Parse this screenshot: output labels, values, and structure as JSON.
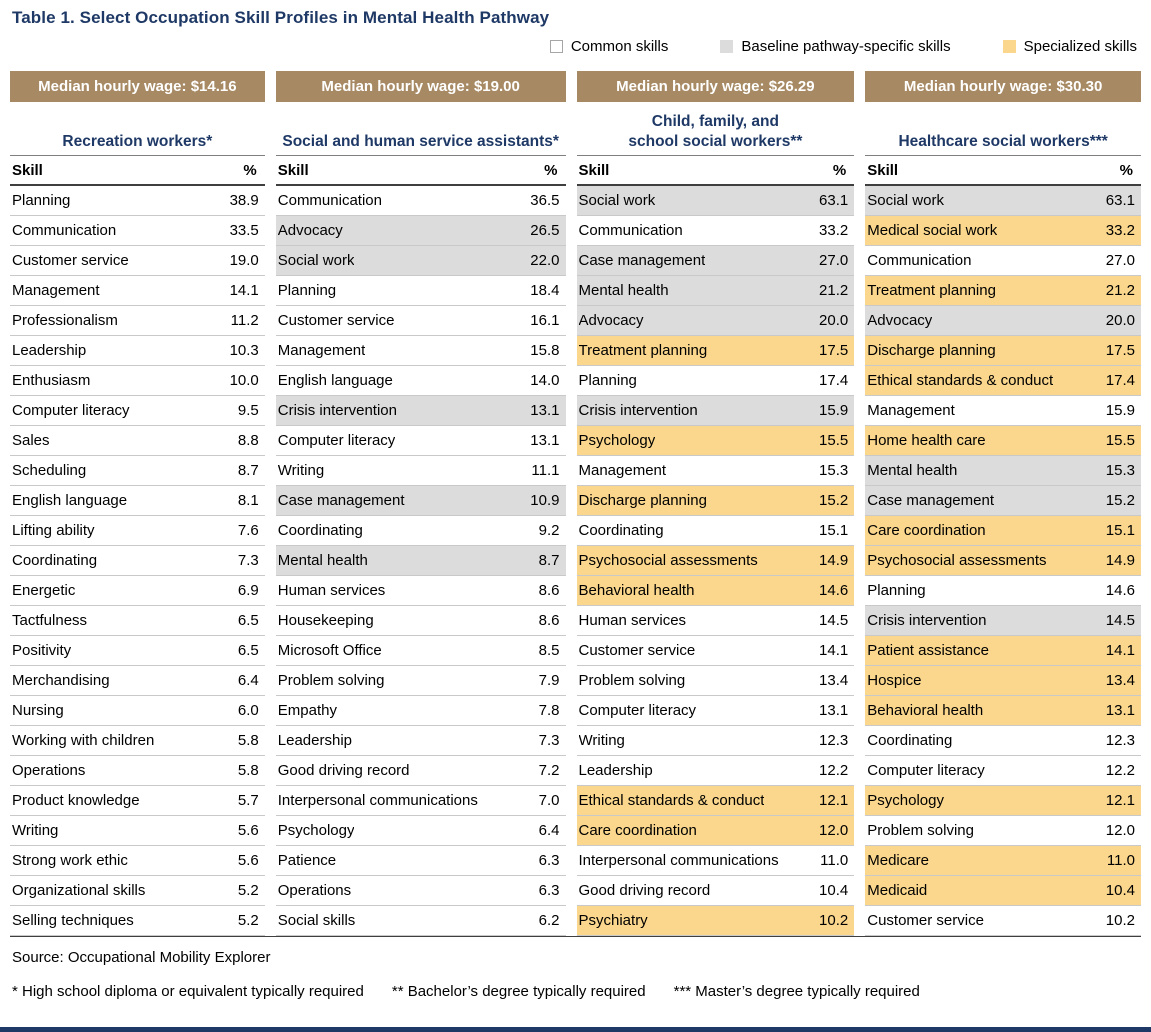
{
  "title": "Table 1. Select Occupation Skill Profiles in Mental Health Pathway",
  "colors": {
    "accent_navy": "#1f3966",
    "banner_tan": "#a78a64",
    "baseline_gray": "#dcdcdc",
    "specialized_amber": "#fad78c"
  },
  "legend": {
    "items": [
      {
        "key": "common",
        "label": "Common skills",
        "color": "#ffffff",
        "border": "#a6a6a6"
      },
      {
        "key": "baseline",
        "label": "Baseline pathway-specific skills",
        "color": "#dcdcdc",
        "border": "#dcdcdc"
      },
      {
        "key": "specialized",
        "label": "Specialized skills",
        "color": "#fad78c",
        "border": "#fad78c"
      }
    ]
  },
  "columns": [
    {
      "wage_label": "Median hourly wage: $14.16",
      "occupation": "Recreation workers*",
      "skill_header": "Skill",
      "pct_header": "%",
      "rows": [
        {
          "skill": "Planning",
          "pct": "38.9",
          "type": "common"
        },
        {
          "skill": "Communication",
          "pct": "33.5",
          "type": "common"
        },
        {
          "skill": "Customer service",
          "pct": "19.0",
          "type": "common"
        },
        {
          "skill": "Management",
          "pct": "14.1",
          "type": "common"
        },
        {
          "skill": "Professionalism",
          "pct": "11.2",
          "type": "common"
        },
        {
          "skill": "Leadership",
          "pct": "10.3",
          "type": "common"
        },
        {
          "skill": "Enthusiasm",
          "pct": "10.0",
          "type": "common"
        },
        {
          "skill": "Computer literacy",
          "pct": "9.5",
          "type": "common"
        },
        {
          "skill": "Sales",
          "pct": "8.8",
          "type": "common"
        },
        {
          "skill": "Scheduling",
          "pct": "8.7",
          "type": "common"
        },
        {
          "skill": "English language",
          "pct": "8.1",
          "type": "common"
        },
        {
          "skill": "Lifting ability",
          "pct": "7.6",
          "type": "common"
        },
        {
          "skill": "Coordinating",
          "pct": "7.3",
          "type": "common"
        },
        {
          "skill": "Energetic",
          "pct": "6.9",
          "type": "common"
        },
        {
          "skill": "Tactfulness",
          "pct": "6.5",
          "type": "common"
        },
        {
          "skill": "Positivity",
          "pct": "6.5",
          "type": "common"
        },
        {
          "skill": "Merchandising",
          "pct": "6.4",
          "type": "common"
        },
        {
          "skill": "Nursing",
          "pct": "6.0",
          "type": "common"
        },
        {
          "skill": "Working with children",
          "pct": "5.8",
          "type": "common"
        },
        {
          "skill": "Operations",
          "pct": "5.8",
          "type": "common"
        },
        {
          "skill": "Product knowledge",
          "pct": "5.7",
          "type": "common"
        },
        {
          "skill": "Writing",
          "pct": "5.6",
          "type": "common"
        },
        {
          "skill": "Strong work ethic",
          "pct": "5.6",
          "type": "common"
        },
        {
          "skill": "Organizational skills",
          "pct": "5.2",
          "type": "common"
        },
        {
          "skill": "Selling techniques",
          "pct": "5.2",
          "type": "common"
        }
      ]
    },
    {
      "wage_label": "Median hourly wage: $19.00",
      "occupation": "Social and human service assistants*",
      "skill_header": "Skill",
      "pct_header": "%",
      "rows": [
        {
          "skill": "Communication",
          "pct": "36.5",
          "type": "common"
        },
        {
          "skill": "Advocacy",
          "pct": "26.5",
          "type": "baseline"
        },
        {
          "skill": "Social work",
          "pct": "22.0",
          "type": "baseline"
        },
        {
          "skill": "Planning",
          "pct": "18.4",
          "type": "common"
        },
        {
          "skill": "Customer service",
          "pct": "16.1",
          "type": "common"
        },
        {
          "skill": "Management",
          "pct": "15.8",
          "type": "common"
        },
        {
          "skill": "English language",
          "pct": "14.0",
          "type": "common"
        },
        {
          "skill": "Crisis intervention",
          "pct": "13.1",
          "type": "baseline"
        },
        {
          "skill": "Computer literacy",
          "pct": "13.1",
          "type": "common"
        },
        {
          "skill": "Writing",
          "pct": "11.1",
          "type": "common"
        },
        {
          "skill": "Case management",
          "pct": "10.9",
          "type": "baseline"
        },
        {
          "skill": "Coordinating",
          "pct": "9.2",
          "type": "common"
        },
        {
          "skill": "Mental health",
          "pct": "8.7",
          "type": "baseline"
        },
        {
          "skill": "Human services",
          "pct": "8.6",
          "type": "common"
        },
        {
          "skill": "Housekeeping",
          "pct": "8.6",
          "type": "common"
        },
        {
          "skill": "Microsoft Office",
          "pct": "8.5",
          "type": "common"
        },
        {
          "skill": "Problem solving",
          "pct": "7.9",
          "type": "common"
        },
        {
          "skill": "Empathy",
          "pct": "7.8",
          "type": "common"
        },
        {
          "skill": "Leadership",
          "pct": "7.3",
          "type": "common"
        },
        {
          "skill": "Good driving record",
          "pct": "7.2",
          "type": "common"
        },
        {
          "skill": "Interpersonal communications",
          "pct": "7.0",
          "type": "common"
        },
        {
          "skill": "Psychology",
          "pct": "6.4",
          "type": "common"
        },
        {
          "skill": "Patience",
          "pct": "6.3",
          "type": "common"
        },
        {
          "skill": "Operations",
          "pct": "6.3",
          "type": "common"
        },
        {
          "skill": "Social skills",
          "pct": "6.2",
          "type": "common"
        }
      ]
    },
    {
      "wage_label": "Median hourly wage: $26.29",
      "occupation": "Child, family, and\nschool social workers**",
      "skill_header": "Skill",
      "pct_header": "%",
      "rows": [
        {
          "skill": "Social work",
          "pct": "63.1",
          "type": "baseline"
        },
        {
          "skill": "Communication",
          "pct": "33.2",
          "type": "common"
        },
        {
          "skill": "Case management",
          "pct": "27.0",
          "type": "baseline"
        },
        {
          "skill": "Mental health",
          "pct": "21.2",
          "type": "baseline"
        },
        {
          "skill": "Advocacy",
          "pct": "20.0",
          "type": "baseline"
        },
        {
          "skill": "Treatment planning",
          "pct": "17.5",
          "type": "specialized"
        },
        {
          "skill": "Planning",
          "pct": "17.4",
          "type": "common"
        },
        {
          "skill": "Crisis intervention",
          "pct": "15.9",
          "type": "baseline"
        },
        {
          "skill": "Psychology",
          "pct": "15.5",
          "type": "specialized"
        },
        {
          "skill": "Management",
          "pct": "15.3",
          "type": "common"
        },
        {
          "skill": "Discharge planning",
          "pct": "15.2",
          "type": "specialized"
        },
        {
          "skill": "Coordinating",
          "pct": "15.1",
          "type": "common"
        },
        {
          "skill": "Psychosocial assessments",
          "pct": "14.9",
          "type": "specialized"
        },
        {
          "skill": "Behavioral health",
          "pct": "14.6",
          "type": "specialized"
        },
        {
          "skill": "Human services",
          "pct": "14.5",
          "type": "common"
        },
        {
          "skill": "Customer service",
          "pct": "14.1",
          "type": "common"
        },
        {
          "skill": "Problem solving",
          "pct": "13.4",
          "type": "common"
        },
        {
          "skill": "Computer literacy",
          "pct": "13.1",
          "type": "common"
        },
        {
          "skill": "Writing",
          "pct": "12.3",
          "type": "common"
        },
        {
          "skill": "Leadership",
          "pct": "12.2",
          "type": "common"
        },
        {
          "skill": "Ethical standards & conduct",
          "pct": "12.1",
          "type": "specialized"
        },
        {
          "skill": "Care coordination",
          "pct": "12.0",
          "type": "specialized"
        },
        {
          "skill": "Interpersonal communications",
          "pct": "11.0",
          "type": "common"
        },
        {
          "skill": "Good driving record",
          "pct": "10.4",
          "type": "common"
        },
        {
          "skill": "Psychiatry",
          "pct": "10.2",
          "type": "specialized"
        }
      ]
    },
    {
      "wage_label": "Median hourly wage: $30.30",
      "occupation": "Healthcare social workers***",
      "skill_header": "Skill",
      "pct_header": "%",
      "rows": [
        {
          "skill": "Social work",
          "pct": "63.1",
          "type": "baseline"
        },
        {
          "skill": "Medical social work",
          "pct": "33.2",
          "type": "specialized"
        },
        {
          "skill": "Communication",
          "pct": "27.0",
          "type": "common"
        },
        {
          "skill": "Treatment planning",
          "pct": "21.2",
          "type": "specialized"
        },
        {
          "skill": "Advocacy",
          "pct": "20.0",
          "type": "baseline"
        },
        {
          "skill": "Discharge planning",
          "pct": "17.5",
          "type": "specialized"
        },
        {
          "skill": "Ethical standards & conduct",
          "pct": "17.4",
          "type": "specialized"
        },
        {
          "skill": "Management",
          "pct": "15.9",
          "type": "common"
        },
        {
          "skill": "Home health care",
          "pct": "15.5",
          "type": "specialized"
        },
        {
          "skill": "Mental health",
          "pct": "15.3",
          "type": "baseline"
        },
        {
          "skill": "Case management",
          "pct": "15.2",
          "type": "baseline"
        },
        {
          "skill": "Care coordination",
          "pct": "15.1",
          "type": "specialized"
        },
        {
          "skill": "Psychosocial assessments",
          "pct": "14.9",
          "type": "specialized"
        },
        {
          "skill": "Planning",
          "pct": "14.6",
          "type": "common"
        },
        {
          "skill": "Crisis intervention",
          "pct": "14.5",
          "type": "baseline"
        },
        {
          "skill": "Patient assistance",
          "pct": "14.1",
          "type": "specialized"
        },
        {
          "skill": "Hospice",
          "pct": "13.4",
          "type": "specialized"
        },
        {
          "skill": "Behavioral health",
          "pct": "13.1",
          "type": "specialized"
        },
        {
          "skill": "Coordinating",
          "pct": "12.3",
          "type": "common"
        },
        {
          "skill": "Computer literacy",
          "pct": "12.2",
          "type": "common"
        },
        {
          "skill": "Psychology",
          "pct": "12.1",
          "type": "specialized"
        },
        {
          "skill": "Problem solving",
          "pct": "12.0",
          "type": "common"
        },
        {
          "skill": "Medicare",
          "pct": "11.0",
          "type": "specialized"
        },
        {
          "skill": "Medicaid",
          "pct": "10.4",
          "type": "specialized"
        },
        {
          "skill": "Customer service",
          "pct": "10.2",
          "type": "common"
        }
      ]
    }
  ],
  "footer": {
    "source": "Source: Occupational Mobility Explorer",
    "footnotes": [
      "* High school diploma or equivalent typically required",
      "** Bachelor’s degree typically required",
      "*** Master’s degree typically required"
    ]
  }
}
